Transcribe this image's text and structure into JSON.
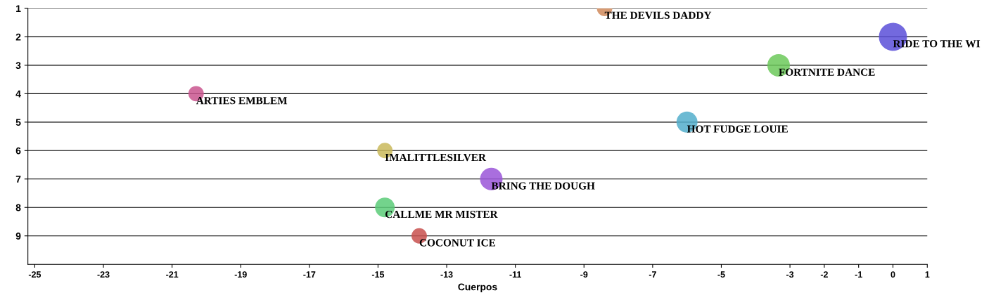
{
  "chart_data": {
    "type": "bubble",
    "xlabel": "Cuerpos",
    "x": [
      -8.4,
      0,
      -3.33,
      -20.3,
      -6.0,
      -14.8,
      -11.7,
      -14.8,
      -13.8
    ],
    "values": [
      1,
      2,
      3,
      4,
      5,
      6,
      7,
      8,
      9
    ],
    "sizes": [
      0.3,
      1,
      0.64,
      0.3,
      0.56,
      0.3,
      0.64,
      0.49,
      0.3
    ],
    "colors": [
      "#d08a5a",
      "#5a4fd8",
      "#6cc95a",
      "#c9558e",
      "#52aecb",
      "#c9b95a",
      "#9a55d8",
      "#5acb78",
      "#c8504e"
    ],
    "annotations": [
      {
        "text": "THE DEVILS DADDY",
        "x": -8.4,
        "y": 1
      },
      {
        "text": "RIDE TO THE WI",
        "x": 0,
        "y": 2
      },
      {
        "text": "FORTNITE DANCE",
        "x": -3.33,
        "y": 3
      },
      {
        "text": "ARTIES EMBLEM",
        "x": -20.3,
        "y": 4
      },
      {
        "text": "HOT FUDGE LOUIE",
        "x": -6.0,
        "y": 5
      },
      {
        "text": "IMALITTLESILVER",
        "x": -14.8,
        "y": 6
      },
      {
        "text": "BRING THE DOUGH",
        "x": -11.7,
        "y": 7
      },
      {
        "text": "CALLME MR MISTER",
        "x": -14.8,
        "y": 8
      },
      {
        "text": "COCONUT ICE",
        "x": -13.8,
        "y": 9
      }
    ],
    "xlim": [
      -25.2,
      1
    ],
    "xticks": [
      -25,
      -23,
      -21,
      -19,
      -17,
      -15,
      -13,
      -11,
      -9,
      -7,
      -5,
      -3,
      -2,
      -1,
      0,
      1
    ],
    "ylim": [
      10,
      1
    ],
    "yticks": [
      1,
      2,
      3,
      4,
      5,
      6,
      7,
      8,
      9
    ],
    "grid": "y"
  }
}
